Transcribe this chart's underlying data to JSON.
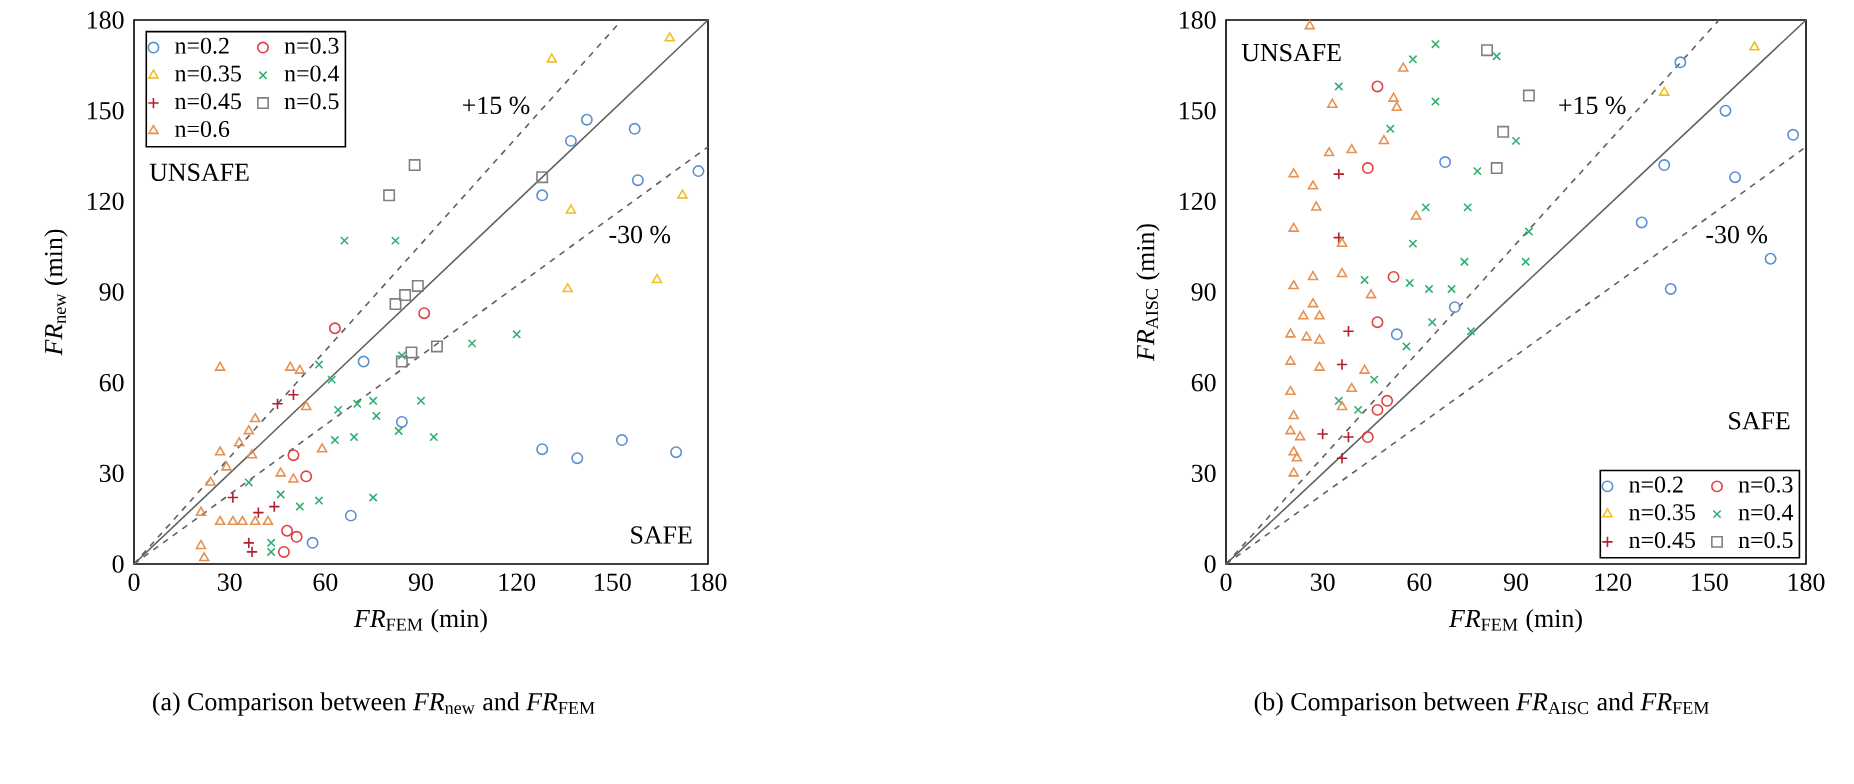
{
  "chart_data": [
    {
      "type": "scatter",
      "xlabel": "*FR*$_{FEM}$ (min)",
      "ylabel": "*FR*$_{new}$ (min)",
      "xlim": [
        0,
        180
      ],
      "ylim": [
        0,
        180
      ],
      "xticks": [
        0,
        30,
        60,
        90,
        120,
        150,
        180
      ],
      "yticks": [
        0,
        30,
        60,
        90,
        120,
        150,
        180
      ],
      "legend": "top left",
      "annotations": [
        "UNSAFE",
        "SAFE",
        "(a) Comparison between *FR*$_{new}$ and *FR*$_{FEM}$"
      ],
      "series": [
        {
          "type": "line",
          "marker": "none",
          "line_style": "solid",
          "color": "#606060",
          "x": [
            0,
            180
          ],
          "values": [
            0,
            180
          ]
        },
        {
          "type": "line",
          "name": "+15 %",
          "marker": "none",
          "line_style": "dashed",
          "color": "#606060",
          "x": [
            0,
            153
          ],
          "values": [
            0,
            180
          ]
        },
        {
          "type": "line",
          "name": "-30 %",
          "marker": "none",
          "line_style": "dashed",
          "color": "#606060",
          "x": [
            0,
            180
          ],
          "values": [
            0,
            138
          ]
        },
        {
          "name": "n=0.2",
          "marker": "circle",
          "color": "#5b8fd0",
          "x": [
            142,
            137,
            157,
            158,
            177,
            128,
            72,
            84,
            128,
            139,
            153,
            170,
            68,
            56
          ],
          "values": [
            147,
            140,
            144,
            127,
            130,
            122,
            67,
            47,
            38,
            35,
            41,
            37,
            16,
            7
          ]
        },
        {
          "name": "n=0.3",
          "marker": "circle",
          "color": "#e04040",
          "x": [
            63,
            91,
            50,
            54,
            48,
            51,
            47
          ],
          "values": [
            78,
            83,
            36,
            29,
            11,
            9,
            4
          ]
        },
        {
          "name": "n=0.35",
          "marker": "triangle",
          "color": "#f0c020",
          "x": [
            168,
            131,
            172,
            137,
            164,
            136
          ],
          "values": [
            174,
            167,
            122,
            117,
            94,
            91
          ]
        },
        {
          "name": "n=0.4",
          "marker": "cross",
          "color": "#30b070",
          "x": [
            66,
            82,
            106,
            120,
            58,
            62,
            84,
            64,
            70,
            75,
            76,
            90,
            83,
            94,
            63,
            69,
            36,
            46,
            52,
            58,
            75,
            43,
            43
          ],
          "values": [
            107,
            107,
            73,
            76,
            66,
            61,
            69,
            51,
            53,
            54,
            49,
            54,
            44,
            42,
            41,
            42,
            27,
            23,
            19,
            21,
            22,
            7,
            4
          ]
        },
        {
          "name": "n=0.45",
          "marker": "plus",
          "color": "#b02030",
          "x": [
            45,
            50,
            31,
            39,
            44,
            36,
            37
          ],
          "values": [
            53,
            56,
            22,
            17,
            19,
            7,
            4
          ]
        },
        {
          "name": "n=0.5",
          "marker": "square",
          "color": "#808080",
          "x": [
            88,
            80,
            128,
            82,
            85,
            89,
            87,
            84,
            95
          ],
          "values": [
            132,
            122,
            128,
            86,
            89,
            92,
            70,
            67,
            72
          ]
        },
        {
          "name": "n=0.6",
          "marker": "triangle",
          "color": "#e89050",
          "x": [
            27,
            49,
            52,
            54,
            38,
            36,
            33,
            37,
            27,
            29,
            24,
            59,
            46,
            50,
            21,
            27,
            31,
            34,
            38,
            42,
            21,
            22
          ],
          "values": [
            65,
            65,
            64,
            52,
            48,
            44,
            40,
            36,
            37,
            32,
            27,
            38,
            30,
            28,
            17,
            14,
            14,
            14,
            14,
            14,
            6,
            2
          ]
        }
      ]
    },
    {
      "type": "scatter",
      "xlabel": "*FR*$_{FEM}$ (min)",
      "ylabel": "*FR*$_{AISC}$ (min)",
      "xlim": [
        0,
        180
      ],
      "ylim": [
        0,
        180
      ],
      "xticks": [
        0,
        30,
        60,
        90,
        120,
        150,
        180
      ],
      "yticks": [
        0,
        30,
        60,
        90,
        120,
        150,
        180
      ],
      "legend": "bottom right",
      "annotations": [
        "UNSAFE",
        "SAFE",
        "(b) Comparison between *FR*$_{AISC}$ and *FR*$_{FEM}$"
      ],
      "series": [
        {
          "type": "line",
          "marker": "none",
          "line_style": "solid",
          "color": "#606060",
          "x": [
            0,
            180
          ],
          "values": [
            0,
            180
          ]
        },
        {
          "type": "line",
          "name": "+15 %",
          "marker": "none",
          "line_style": "dashed",
          "color": "#606060",
          "x": [
            0,
            153
          ],
          "values": [
            0,
            180
          ]
        },
        {
          "type": "line",
          "name": "-30 %",
          "marker": "none",
          "line_style": "dashed",
          "color": "#606060",
          "x": [
            0,
            180
          ],
          "values": [
            0,
            138
          ]
        },
        {
          "name": "n=0.2",
          "marker": "circle",
          "color": "#5b8fd0",
          "x": [
            141,
            155,
            136,
            158,
            176,
            129,
            169,
            138,
            68,
            71,
            53
          ],
          "values": [
            166,
            150,
            132,
            128,
            142,
            113,
            101,
            91,
            133,
            85,
            76
          ]
        },
        {
          "name": "n=0.3",
          "marker": "circle",
          "color": "#e04040",
          "x": [
            47,
            44,
            52,
            47,
            47,
            50,
            44
          ],
          "values": [
            158,
            131,
            95,
            80,
            51,
            54,
            42
          ]
        },
        {
          "name": "n=0.35",
          "marker": "triangle",
          "color": "#f0c020",
          "x": [
            164,
            136
          ],
          "values": [
            171,
            156
          ]
        },
        {
          "name": "n=0.4",
          "marker": "cross",
          "color": "#30b070",
          "x": [
            35,
            58,
            65,
            84,
            65,
            51,
            90,
            78,
            62,
            75,
            58,
            94,
            93,
            74,
            57,
            63,
            70,
            43,
            64,
            76,
            56,
            46,
            35,
            41
          ],
          "values": [
            158,
            167,
            172,
            168,
            153,
            144,
            140,
            130,
            118,
            118,
            106,
            110,
            100,
            100,
            93,
            91,
            91,
            94,
            80,
            77,
            72,
            61,
            54,
            51
          ]
        },
        {
          "name": "n=0.45",
          "marker": "plus",
          "color": "#b02030",
          "x": [
            35,
            35,
            38,
            36,
            30,
            38,
            36
          ],
          "values": [
            129,
            108,
            77,
            66,
            43,
            42,
            35
          ]
        },
        {
          "name": "n=0.5",
          "marker": "square",
          "color": "#808080",
          "x": [
            81,
            94,
            86,
            84
          ],
          "values": [
            170,
            155,
            143,
            131
          ]
        },
        {
          "marker": "triangle",
          "color": "#e89050",
          "x": [
            26,
            55,
            33,
            52,
            53,
            49,
            32,
            39,
            21,
            27,
            28,
            59,
            21,
            36,
            21,
            27,
            36,
            45,
            27,
            24,
            29,
            20,
            25,
            29,
            20,
            29,
            43,
            39,
            20,
            21,
            20,
            23,
            21,
            22,
            21,
            36
          ],
          "values": [
            178,
            164,
            152,
            154,
            151,
            140,
            136,
            137,
            129,
            125,
            118,
            115,
            111,
            106,
            92,
            95,
            96,
            89,
            86,
            82,
            82,
            76,
            75,
            74,
            67,
            65,
            64,
            58,
            57,
            49,
            44,
            42,
            37,
            35,
            30,
            52
          ]
        }
      ]
    }
  ]
}
